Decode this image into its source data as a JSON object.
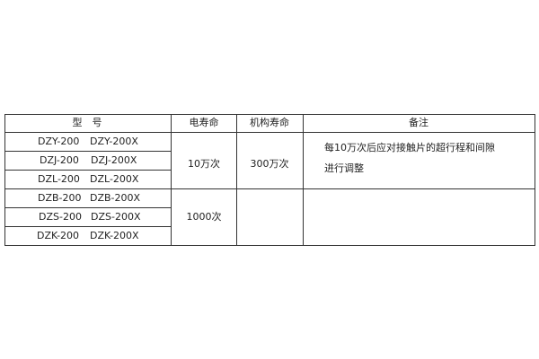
{
  "table": {
    "headers": [
      "型　号",
      "电寿命",
      "机构寿命",
      "备注"
    ],
    "rows": [
      {
        "model": "DZY-200",
        "model_x": "DZY-200X"
      },
      {
        "model": "DZJ-200",
        "model_x": "DZJ-200X"
      },
      {
        "model": "DZL-200",
        "model_x": "DZL-200X"
      },
      {
        "model": "DZB-200",
        "model_x": "DZB-200X"
      },
      {
        "model": "DZS-200",
        "model_x": "DZS-200X"
      },
      {
        "model": "DZK-200",
        "model_x": "DZK-200X"
      }
    ],
    "group1": {
      "electrical_life": "10万次",
      "mechanical_life": "300万次",
      "remark_line1": "每10万次后应对接触片的超行程和间隙",
      "remark_line2": "进行调整"
    },
    "group2": {
      "electrical_life": "1000次"
    }
  }
}
